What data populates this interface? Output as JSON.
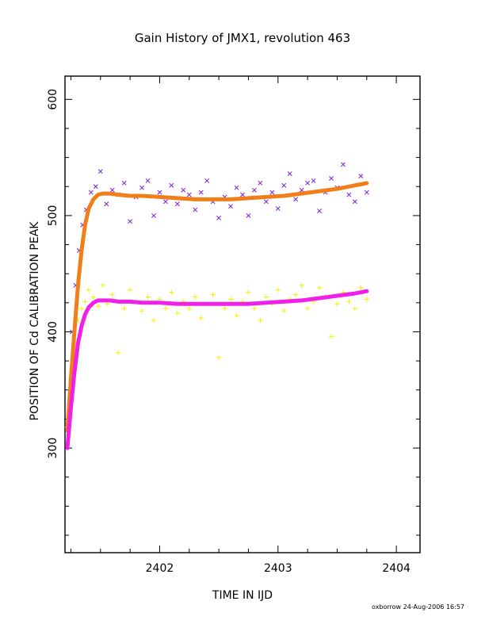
{
  "chart_data": {
    "type": "scatter",
    "title": "Gain History of JMX1, revolution 463",
    "xlabel": "TIME IN IJD",
    "ylabel": "POSITION OF Cd CALIBRATION PEAK",
    "xlim": [
      2401.2,
      2404.2
    ],
    "ylim": [
      210,
      620
    ],
    "x_ticks": [
      2402,
      2403,
      2404
    ],
    "y_ticks": [
      300,
      400,
      500,
      600
    ],
    "grid": false,
    "legend": "none",
    "series": [
      {
        "marker": "x",
        "color": "#7a1fd6",
        "x": [
          2401.26,
          2401.29,
          2401.32,
          2401.35,
          2401.38,
          2401.42,
          2401.46,
          2401.5,
          2401.55,
          2401.6,
          2401.65,
          2401.7,
          2401.75,
          2401.8,
          2401.85,
          2401.9,
          2401.95,
          2402.0,
          2402.05,
          2402.1,
          2402.15,
          2402.2,
          2402.25,
          2402.3,
          2402.35,
          2402.4,
          2402.45,
          2402.5,
          2402.55,
          2402.6,
          2402.65,
          2402.7,
          2402.75,
          2402.8,
          2402.85,
          2402.9,
          2402.95,
          2403.0,
          2403.05,
          2403.1,
          2403.15,
          2403.2,
          2403.25,
          2403.3,
          2403.35,
          2403.4,
          2403.45,
          2403.5,
          2403.55,
          2403.6,
          2403.65,
          2403.7,
          2403.75
        ],
        "y": [
          400,
          440,
          470,
          492,
          505,
          520,
          525,
          538,
          510,
          522,
          518,
          528,
          495,
          516,
          524,
          530,
          500,
          520,
          512,
          526,
          510,
          522,
          518,
          505,
          520,
          530,
          512,
          498,
          516,
          508,
          524,
          518,
          500,
          522,
          528,
          512,
          520,
          506,
          526,
          536,
          514,
          522,
          528,
          530,
          504,
          520,
          532,
          524,
          544,
          518,
          512,
          534,
          520
        ]
      },
      {
        "marker": "+",
        "color": "#f5f000",
        "x": [
          2401.22,
          2401.25,
          2401.28,
          2401.31,
          2401.34,
          2401.37,
          2401.4,
          2401.44,
          2401.48,
          2401.52,
          2401.56,
          2401.6,
          2401.65,
          2401.7,
          2401.75,
          2401.8,
          2401.85,
          2401.9,
          2401.95,
          2402.0,
          2402.05,
          2402.1,
          2402.15,
          2402.2,
          2402.25,
          2402.3,
          2402.35,
          2402.4,
          2402.45,
          2402.5,
          2402.55,
          2402.6,
          2402.65,
          2402.7,
          2402.75,
          2402.8,
          2402.85,
          2402.9,
          2402.95,
          2403.0,
          2403.05,
          2403.1,
          2403.15,
          2403.2,
          2403.25,
          2403.3,
          2403.35,
          2403.4,
          2403.45,
          2403.5,
          2403.55,
          2403.6,
          2403.65,
          2403.7,
          2403.75
        ],
        "y": [
          318,
          360,
          392,
          410,
          420,
          426,
          436,
          430,
          422,
          440,
          424,
          432,
          382,
          420,
          436,
          426,
          418,
          430,
          410,
          428,
          420,
          434,
          416,
          426,
          420,
          430,
          412,
          424,
          432,
          378,
          420,
          428,
          414,
          426,
          434,
          420,
          410,
          430,
          424,
          436,
          418,
          428,
          432,
          440,
          420,
          426,
          438,
          430,
          396,
          424,
          434,
          426,
          420,
          438,
          428
        ]
      },
      {
        "marker": "line",
        "color": "#f07f1a",
        "x": [
          2401.22,
          2401.25,
          2401.28,
          2401.31,
          2401.34,
          2401.37,
          2401.4,
          2401.44,
          2401.48,
          2401.52,
          2401.58,
          2401.65,
          2401.75,
          2401.85,
          2402.0,
          2402.15,
          2402.3,
          2402.45,
          2402.6,
          2402.75,
          2402.9,
          2403.05,
          2403.2,
          2403.35,
          2403.5,
          2403.65,
          2403.75
        ],
        "y": [
          315,
          360,
          400,
          440,
          470,
          492,
          506,
          514,
          518,
          519,
          519,
          518,
          517,
          517,
          516,
          515,
          514,
          514,
          514,
          515,
          516,
          517,
          519,
          521,
          523,
          526,
          528
        ]
      },
      {
        "marker": "line",
        "color": "#f020e8",
        "x": [
          2401.22,
          2401.25,
          2401.28,
          2401.31,
          2401.34,
          2401.37,
          2401.4,
          2401.44,
          2401.48,
          2401.52,
          2401.58,
          2401.65,
          2401.75,
          2401.85,
          2402.0,
          2402.15,
          2402.3,
          2402.45,
          2402.6,
          2402.75,
          2402.9,
          2403.05,
          2403.2,
          2403.35,
          2403.5,
          2403.65,
          2403.75
        ],
        "y": [
          300,
          335,
          365,
          390,
          405,
          415,
          421,
          425,
          427,
          427,
          427,
          426,
          426,
          425,
          425,
          424,
          424,
          424,
          424,
          424,
          425,
          426,
          427,
          429,
          431,
          433,
          435
        ]
      }
    ]
  },
  "footer": {
    "credit": "oxborrow 24-Aug-2006 16:57"
  }
}
